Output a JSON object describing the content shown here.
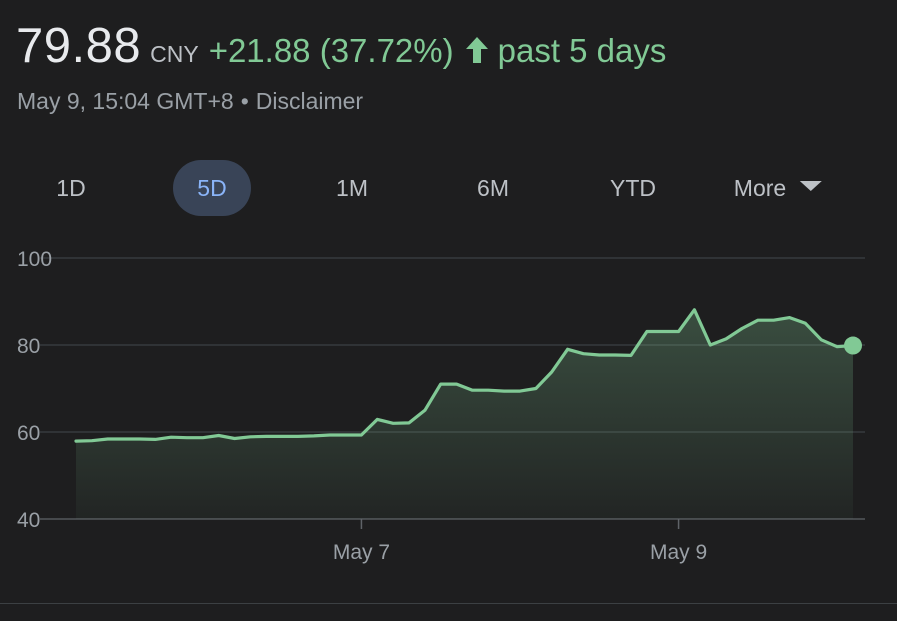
{
  "header": {
    "price": "79.88",
    "currency": "CNY",
    "change": "+21.88 (37.72%)",
    "period": "past 5 days",
    "timestamp": "May 9, 15:04 GMT+8",
    "separator": "•",
    "disclaimer": "Disclaimer"
  },
  "range_tabs": {
    "tabs": [
      "1D",
      "5D",
      "1M",
      "6M",
      "YTD",
      "More"
    ],
    "selected": "5D"
  },
  "colors": {
    "positive": "#81c995",
    "selected_tab_bg": "#394457",
    "selected_tab_text": "#8ab4f8",
    "background": "#1e1e1f",
    "grid": "#3c4043"
  },
  "icons": {
    "up_arrow": "arrow-up-icon",
    "more": "caret-down-icon"
  },
  "chart_data": {
    "type": "area",
    "x_labels": [
      "May 7",
      "May 9"
    ],
    "x_label_positions": [
      18,
      38
    ],
    "y_ticks": [
      100,
      80,
      60,
      40
    ],
    "ylim": [
      40,
      100
    ],
    "xlim": [
      0,
      49
    ],
    "grid": true,
    "last_value": 79.88,
    "x": [
      0,
      1,
      2,
      3,
      4,
      5,
      6,
      7,
      8,
      9,
      10,
      11,
      12,
      13,
      14,
      15,
      16,
      17,
      18,
      19,
      20,
      21,
      22,
      23,
      24,
      25,
      26,
      27,
      28,
      29,
      30,
      31,
      32,
      33,
      34,
      35,
      36,
      37,
      38,
      39,
      40,
      41,
      42,
      43,
      44,
      45,
      46,
      47,
      48,
      49
    ],
    "values": [
      57.9,
      58.0,
      58.4,
      58.4,
      58.4,
      58.3,
      58.8,
      58.7,
      58.7,
      59.2,
      58.5,
      58.9,
      59.0,
      59.0,
      59.0,
      59.1,
      59.3,
      59.3,
      59.3,
      62.9,
      62.0,
      62.1,
      65.0,
      71.0,
      71.0,
      69.6,
      69.6,
      69.4,
      69.4,
      70.0,
      73.8,
      79.0,
      78.0,
      77.7,
      77.7,
      77.6,
      83.1,
      83.1,
      83.1,
      88.1,
      80.0,
      81.4,
      83.8,
      85.7,
      85.7,
      86.3,
      85.0,
      81.2,
      79.6,
      79.88
    ]
  }
}
